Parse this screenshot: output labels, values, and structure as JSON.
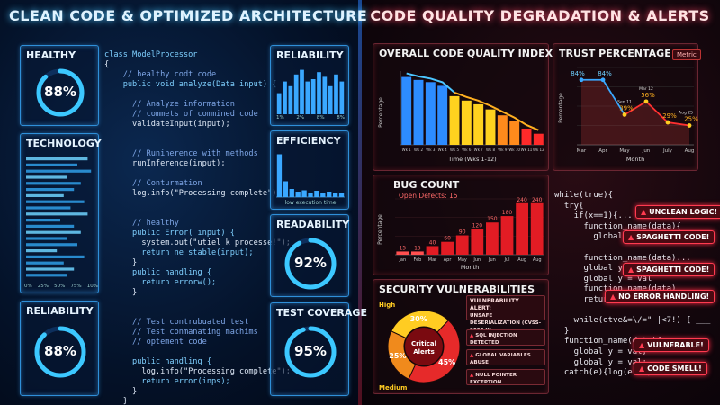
{
  "left_title": "CLEAN CODE & OPTIMIZED ARCHITECTURE",
  "right_title": "CODE QUALITY DEGRADATION & ALERTS",
  "healthy": {
    "label": "HEALTHY",
    "value": "88%",
    "fraction": 0.88
  },
  "technology": {
    "label": "TECHNOLOGY",
    "axis": [
      "0%",
      "25%",
      "50%",
      "75%",
      "10%"
    ]
  },
  "reliability_left": {
    "label": "RELIABILITY",
    "value": "88%",
    "fraction": 0.88
  },
  "reliability_right": {
    "label": "RELIABILITY",
    "axis": [
      "1%",
      "2%",
      "8%",
      "8%"
    ],
    "bars": [
      0.45,
      0.7,
      0.6,
      0.85,
      0.95,
      0.7,
      0.75,
      0.9,
      0.8,
      0.6,
      0.85,
      0.7
    ]
  },
  "efficiency": {
    "label": "EFFICIENCY",
    "caption": "low execution time",
    "bars": [
      0.95,
      0.35,
      0.18,
      0.12,
      0.15,
      0.1,
      0.14,
      0.1,
      0.12,
      0.08,
      0.1
    ]
  },
  "readability": {
    "label": "READABILITY",
    "value": "92%",
    "fraction": 0.92
  },
  "test_coverage": {
    "label": "TEST COVERAGE",
    "value": "95%",
    "fraction": 0.95
  },
  "code_left": [
    "class ModelProcessor",
    "{",
    "    // healthy codt code",
    "    public void analyze(Data input) {",
    "",
    "      // Analyze information",
    "      // commets of commined code",
    "      validateInput(input);",
    "",
    "",
    "      // Runinerence with methods",
    "      runInference(input);",
    "",
    "      // Conturmation",
    "      log.info(\"Processing complete\");",
    "",
    "",
    "      // healthy",
    "      public Error( input) {",
    "        system.out(\"utiel k processe!\");",
    "        return ne stable(input);",
    "      }",
    "      public handling {",
    "        return errorw();",
    "      }",
    "",
    "",
    "      // Test contrubuated test",
    "      // Test conmanating machims",
    "      // optement code",
    "",
    "      public handling {",
    "        log.info(\"Processing complete\");",
    "        return error(inps);",
    "      }",
    "    }",
    "  }"
  ],
  "quality_index": {
    "title": "OVERALL CODE QUALITY INDEX",
    "ylabel": "Percentage",
    "xlabel": "Time (Wks 1-12)"
  },
  "trust": {
    "title": "TRUST PERCENTAGE",
    "badge": "Metric",
    "ylabel": "Percentage",
    "xlabel": "Month"
  },
  "bug_count": {
    "title": "BUG COUNT",
    "subtitle": "Open Defects: 15",
    "ylabel": "Percentage",
    "xlabel": "Month"
  },
  "security": {
    "title": "SECURITY VULNERABILITIES",
    "center_label": "Critical Alerts",
    "alert_title": "VULNERABILITY ALERT:",
    "alert_sub": "UNSAFE DESERIALIZATION (CVSS-2024-X)",
    "items": [
      "SQL INJECTION DETECTED",
      "GLOBAL VARIABLES ABUSE",
      "NULL POINTER EXCEPTION"
    ]
  },
  "code_right": [
    "while(true){",
    "  try{",
    "    if(x==1){...",
    "      function_name(data){",
    "        global y =",
    "",
    "      function_name(data)...",
    "      global y = val",
    "      global y = val",
    "      function_name(data)",
    "      return t",
    "",
    "    while(etve&=\\/=\" |<7!) { ___",
    "  }",
    "  function_name(data){",
    "    global y = val;",
    "    global y = val;",
    "  catch(e){log(e); }"
  ],
  "alerts": [
    "UNCLEAN LOGIC!",
    "SPAGHETTI CODE!",
    "SPAGHETTI CODE!",
    "NO ERROR HANDLING!",
    "VULNERABLE!",
    "CODE SMELL!"
  ],
  "chart_data": [
    {
      "type": "bar",
      "title": "OVERALL CODE QUALITY INDEX",
      "categories": [
        "Wk 1",
        "Wk 2",
        "Wk 3",
        "Wk 4",
        "Wk 5",
        "Wk 6",
        "Wk 7",
        "Wk 8",
        "Wk 9",
        "Wk 10",
        "Wk 11",
        "Wk 12"
      ],
      "values": [
        92,
        88,
        85,
        80,
        66,
        60,
        55,
        48,
        40,
        32,
        22,
        15
      ],
      "xlabel": "Time (Wks 1-12)",
      "ylabel": "Percentage",
      "ylim": [
        0,
        100
      ]
    },
    {
      "type": "line",
      "title": "TRUST PERCENTAGE",
      "categories": [
        "Mar",
        "Apr",
        "May",
        "Jun",
        "July",
        "Aug"
      ],
      "values": [
        84,
        84,
        39,
        56,
        29,
        25
      ],
      "labels": [
        "84%",
        "84%",
        "39%",
        "56%",
        "29%",
        "25%"
      ],
      "extra_labels": [
        "Sen 11",
        "Mar 12",
        "Aug 25"
      ],
      "xlabel": "Month",
      "ylabel": "Percentage",
      "ylim": [
        0,
        100
      ]
    },
    {
      "type": "bar",
      "title": "BUG COUNT",
      "subtitle": "Open Defects: 15",
      "categories": [
        "Jan",
        "Feb",
        "Mar",
        "Apr",
        "May",
        "Jun",
        "Jun",
        "Jul",
        "Aug",
        "Aug"
      ],
      "values": [
        15,
        15,
        40,
        60,
        90,
        120,
        150,
        180,
        240,
        240
      ],
      "labels": [
        "15",
        "15",
        "40",
        "60",
        "90",
        "120",
        "150",
        "180",
        "240",
        "240"
      ],
      "xlabel": "Month",
      "ylabel": "Percentage",
      "ylim": [
        0,
        260
      ]
    },
    {
      "type": "pie",
      "title": "SECURITY VULNERABILITIES",
      "slices": [
        {
          "name": "High",
          "value": 30,
          "label": "30%",
          "color": "#ffcc22"
        },
        {
          "name": "",
          "value": 45,
          "label": "45%",
          "color": "#e62a2a"
        },
        {
          "name": "Medium",
          "value": 25,
          "label": "25%",
          "color": "#f08a1c"
        }
      ]
    }
  ]
}
